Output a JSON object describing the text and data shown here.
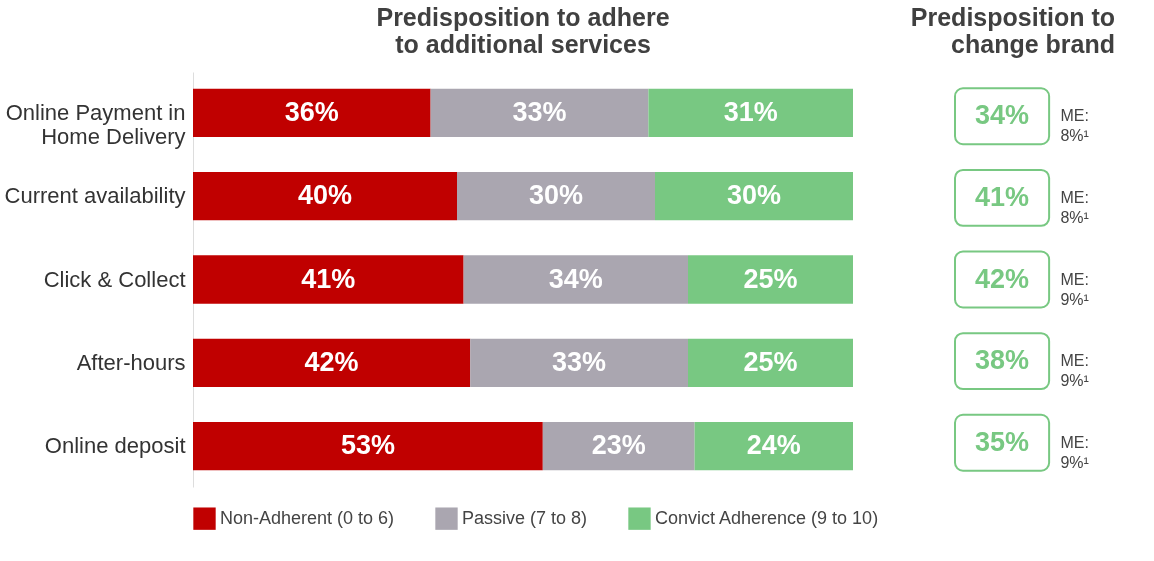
{
  "chart_data": [
    {
      "type": "bar",
      "orientation": "horizontal",
      "stacked": true,
      "title": "Predisposition to adhere to additional services",
      "categories": [
        "Online Payment in Home Delivery",
        "Current availability",
        "Click & Collect",
        "After-hours",
        "Online deposit"
      ],
      "series": [
        {
          "name": "Non-Adherent (0 to 6)",
          "color": "#c00000",
          "values": [
            36,
            40,
            41,
            42,
            53
          ],
          "value_labels": [
            "36%",
            "40%",
            "41%",
            "42%",
            "53%"
          ]
        },
        {
          "name": "Passive (7 to 8)",
          "color": "#aaa6b0",
          "values": [
            33,
            30,
            34,
            33,
            23
          ],
          "value_labels": [
            "33%",
            "30%",
            "34%",
            "33%",
            "23%"
          ]
        },
        {
          "name": "Convict Adherence (9 to 10)",
          "color": "#78c882",
          "values": [
            31,
            30,
            25,
            25,
            24
          ],
          "value_labels": [
            "31%",
            "30%",
            "25%",
            "25%",
            "24%"
          ]
        }
      ],
      "legend": "bottom"
    },
    {
      "type": "other",
      "title": "Predisposition to change brand",
      "categories": [
        null,
        null,
        null,
        null,
        null
      ],
      "value_labels": [
        "34%",
        "41%",
        "42%",
        "38%",
        "35%"
      ],
      "color": "#78c882",
      "annotations": [
        "ME: 8%¹",
        "ME: 8%¹",
        "ME: 9%¹",
        "ME: 9%¹",
        "ME: 9%¹"
      ]
    }
  ]
}
